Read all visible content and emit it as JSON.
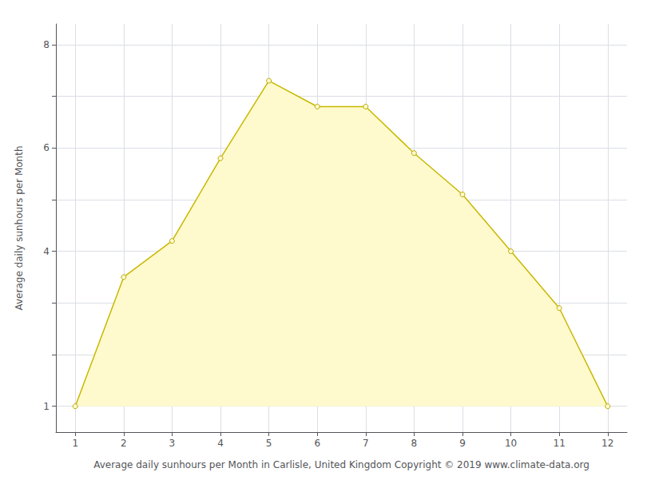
{
  "chart_data": {
    "type": "area",
    "xlabel": "Average daily sunhours per Month in Carlisle, United Kingdom Copyright © 2019 www.climate-data.org",
    "ylabel": "Average daily sunhours per Month",
    "x": [
      1,
      2,
      3,
      4,
      5,
      6,
      7,
      8,
      9,
      10,
      11,
      12
    ],
    "values": [
      1.0,
      3.5,
      4.2,
      5.8,
      7.3,
      6.8,
      6.8,
      5.9,
      5.1,
      4.0,
      2.9,
      1.0
    ],
    "fill_baseline": 1.0,
    "color": "#C8B800",
    "fill_color": "#FFFACD",
    "marker": "circle",
    "marker_color": "#FFFACD",
    "marker_edge_color": "#B8A800",
    "xlim": [
      0.6,
      12.4
    ],
    "ylim": [
      0.5,
      8.4
    ],
    "xticks": [
      1,
      2,
      3,
      4,
      5,
      6,
      7,
      8,
      9,
      10,
      11,
      12
    ],
    "yticks": [
      1,
      {
        "value": 2,
        "label": ""
      },
      {
        "value": 3,
        "label": ""
      },
      4,
      {
        "value": 5,
        "label": ""
      },
      6,
      {
        "value": 7,
        "label": ""
      },
      8
    ],
    "grid": true
  }
}
